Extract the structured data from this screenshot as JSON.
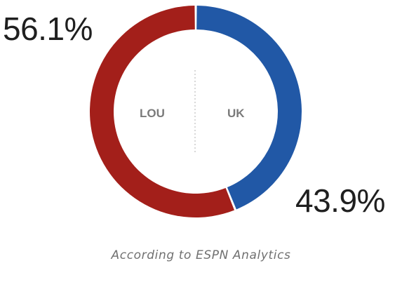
{
  "chart_data": {
    "type": "pie",
    "style": "donut",
    "slices": [
      {
        "label": "LOU",
        "value": 56.1,
        "display": "56.1%",
        "color": "#a31f1a"
      },
      {
        "label": "UK",
        "value": 43.9,
        "display": "43.9%",
        "color": "#2158a6"
      }
    ],
    "center_divider": true,
    "caption": "According to ESPN Analytics"
  }
}
